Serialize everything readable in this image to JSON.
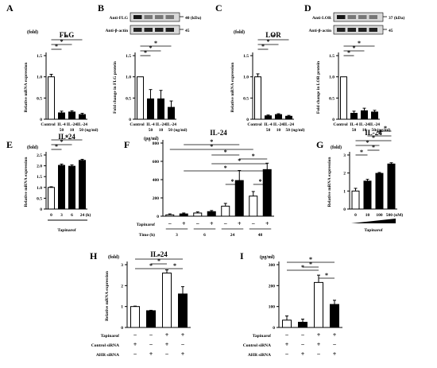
{
  "figure": {
    "panels": [
      "A",
      "B",
      "C",
      "D",
      "E",
      "F",
      "G",
      "H",
      "I"
    ]
  },
  "chart_data": [
    {
      "id": "A",
      "type": "bar",
      "title": "FLG",
      "unit": "(fold)",
      "ylabel": "Relative mRNA expression",
      "ylim": [
        0,
        1.5
      ],
      "yticks": [
        "0",
        "0.5",
        "1.0",
        "1.5"
      ],
      "categories": [
        "Control",
        "IL-4",
        "IL-24",
        "IL-24"
      ],
      "sublabels": [
        "",
        "50",
        "10",
        "50 (ng/ml)"
      ],
      "values": [
        1.0,
        0.15,
        0.17,
        0.11
      ],
      "errors": [
        0.06,
        0.04,
        0.03,
        0.03
      ],
      "fills": [
        "white",
        "black",
        "black",
        "black"
      ],
      "sig": "*"
    },
    {
      "id": "B",
      "type": "bar",
      "title": "",
      "ylabel": "Fold change in FLG protein",
      "ylim": [
        0,
        1.5
      ],
      "yticks": [
        "0",
        "0.5",
        "1.0",
        "1.5"
      ],
      "categories": [
        "Control",
        "IL-4",
        "IL-24",
        "IL-24"
      ],
      "sublabels": [
        "",
        "50",
        "10",
        "50 (ng/ml)"
      ],
      "values": [
        1.0,
        0.48,
        0.48,
        0.28
      ],
      "errors": [
        0,
        0.22,
        0.2,
        0.15
      ],
      "fills": [
        "white",
        "black",
        "black",
        "black"
      ],
      "blot_labels": [
        "Anti-FLG",
        "Anti-β-actin"
      ],
      "blot_sizes": [
        "40 (kDa)",
        "45"
      ],
      "sig": "*"
    },
    {
      "id": "C",
      "type": "bar",
      "title": "LOR",
      "unit": "(fold)",
      "ylabel": "Relative mRNA expression",
      "ylim": [
        0,
        1.5
      ],
      "yticks": [
        "0",
        "0.5",
        "1.0",
        "1.5"
      ],
      "categories": [
        "Control",
        "IL-4",
        "IL-24",
        "IL-24"
      ],
      "sublabels": [
        "",
        "50",
        "10",
        "50 (ng/ml)"
      ],
      "values": [
        1.0,
        0.08,
        0.11,
        0.07
      ],
      "errors": [
        0.07,
        0.02,
        0.02,
        0.02
      ],
      "fills": [
        "white",
        "black",
        "black",
        "black"
      ],
      "sig": "*"
    },
    {
      "id": "D",
      "type": "bar",
      "title": "",
      "ylabel": "Fold change in LOR protein",
      "ylim": [
        0,
        1.5
      ],
      "yticks": [
        "0",
        "0.5",
        "1.0",
        "1.5"
      ],
      "categories": [
        "Control",
        "IL-4",
        "IL-24",
        "IL-24"
      ],
      "sublabels": [
        "",
        "50",
        "10",
        "50 (ng/ml)"
      ],
      "values": [
        1.0,
        0.14,
        0.2,
        0.17
      ],
      "errors": [
        0,
        0.05,
        0.06,
        0.04
      ],
      "fills": [
        "white",
        "black",
        "black",
        "black"
      ],
      "blot_labels": [
        "Anti-LOR",
        "Anti-β-actin"
      ],
      "blot_sizes": [
        "37 (kDa)",
        "45"
      ],
      "sig": "*"
    },
    {
      "id": "E",
      "type": "bar",
      "title": "IL-24",
      "unit": "(fold)",
      "ylabel": "Relative mRNA expression",
      "ylim": [
        0,
        2.5
      ],
      "yticks": [
        "0",
        "0.5",
        "1.0",
        "1.5",
        "2.0",
        "2.5"
      ],
      "categories": [
        "0",
        "3",
        "6",
        "24 (h)"
      ],
      "values": [
        1.0,
        2.02,
        1.98,
        2.25
      ],
      "errors": [
        0.03,
        0.06,
        0.06,
        0.05
      ],
      "fills": [
        "white",
        "black",
        "black",
        "black"
      ],
      "xtitle": "Tapinarof",
      "sig": "*"
    },
    {
      "id": "F",
      "type": "bar",
      "title": "IL-24",
      "unit": "(pg/ml)",
      "ylim": [
        0,
        800
      ],
      "yticks": [
        "0",
        "200",
        "400",
        "600",
        "800"
      ],
      "values": [
        15,
        25,
        35,
        50,
        110,
        390,
        220,
        510
      ],
      "errors": [
        10,
        10,
        12,
        12,
        30,
        110,
        50,
        70
      ],
      "fills": [
        "white",
        "black",
        "white",
        "black",
        "white",
        "black",
        "white",
        "black"
      ],
      "row_labels": [
        "Tapinarof",
        "Time (h)"
      ],
      "tapinarof_signs": [
        "−",
        "+",
        "−",
        "+",
        "−",
        "+",
        "−",
        "+"
      ],
      "time_labels": [
        "3",
        "6",
        "24",
        "48"
      ],
      "sig": "*"
    },
    {
      "id": "G",
      "type": "bar",
      "title": "IL-24",
      "unit": "(fold)",
      "ylabel": "Relative mRNA expression",
      "ylim": [
        0,
        3
      ],
      "yticks": [
        "0",
        "1",
        "2",
        "3"
      ],
      "categories": [
        "0",
        "10",
        "100",
        "500 (nM)"
      ],
      "values": [
        1.0,
        1.55,
        1.98,
        2.5
      ],
      "errors": [
        0.15,
        0.1,
        0.05,
        0.07
      ],
      "fills": [
        "white",
        "black",
        "black",
        "black"
      ],
      "xtitle": "Tapinarof",
      "sig": "*"
    },
    {
      "id": "H",
      "type": "bar",
      "title": "IL-24",
      "unit": "(fold)",
      "ylabel": "Relative mRNA expression",
      "ylim": [
        0,
        3
      ],
      "yticks": [
        "0",
        "1",
        "2",
        "3"
      ],
      "values": [
        1.0,
        0.8,
        2.6,
        1.6
      ],
      "errors": [
        0.02,
        0.02,
        0.15,
        0.35
      ],
      "fills": [
        "white",
        "black",
        "white",
        "black"
      ],
      "row_labels": [
        "Tapinarof",
        "Control siRNA",
        "AHR siRNA"
      ],
      "row_signs": [
        [
          "−",
          "−",
          "+",
          "+"
        ],
        [
          "+",
          "−",
          "+",
          "−"
        ],
        [
          "−",
          "+",
          "−",
          "+"
        ]
      ],
      "sig": "*"
    },
    {
      "id": "I",
      "type": "bar",
      "title": "",
      "unit": "(pg/ml)",
      "ylim": [
        0,
        300
      ],
      "yticks": [
        "0",
        "100",
        "200",
        "300"
      ],
      "values": [
        35,
        25,
        215,
        110
      ],
      "errors": [
        20,
        15,
        35,
        20
      ],
      "fills": [
        "white",
        "black",
        "white",
        "black"
      ],
      "row_labels": [
        "Tapinarof",
        "Control siRNA",
        "AHR siRNA"
      ],
      "row_signs": [
        [
          "−",
          "−",
          "+",
          "+"
        ],
        [
          "+",
          "−",
          "+",
          "−"
        ],
        [
          "−",
          "+",
          "−",
          "+"
        ]
      ],
      "sig": "*"
    }
  ]
}
